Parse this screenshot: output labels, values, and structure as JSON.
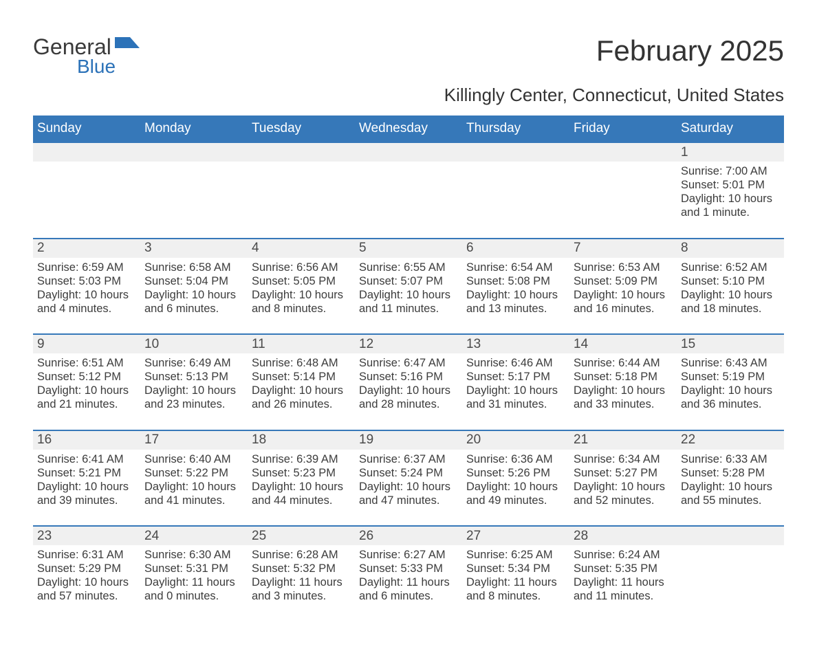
{
  "brand": {
    "word1": "General",
    "word2": "Blue",
    "text_color": "#3a3a3a",
    "accent_color": "#2c72b8"
  },
  "header": {
    "title": "February 2025",
    "location": "Killingly Center, Connecticut, United States"
  },
  "colors": {
    "header_row_bg": "#3678b9",
    "header_row_text": "#ffffff",
    "date_band_bg": "#f0f0f0",
    "date_band_border": "#3678b9",
    "body_text": "#3c3c3c",
    "page_bg": "#ffffff"
  },
  "font": {
    "title_size_pt": 32,
    "location_size_pt": 20,
    "weekday_size_pt": 14,
    "date_size_pt": 14,
    "body_size_pt": 12,
    "family": "Segoe UI"
  },
  "weekdays": [
    "Sunday",
    "Monday",
    "Tuesday",
    "Wednesday",
    "Thursday",
    "Friday",
    "Saturday"
  ],
  "weeks": [
    {
      "dates": [
        "",
        "",
        "",
        "",
        "",
        "",
        "1"
      ],
      "cells": [
        null,
        null,
        null,
        null,
        null,
        null,
        {
          "sunrise": "Sunrise: 7:00 AM",
          "sunset": "Sunset: 5:01 PM",
          "daylight": "Daylight: 10 hours and 1 minute."
        }
      ]
    },
    {
      "dates": [
        "2",
        "3",
        "4",
        "5",
        "6",
        "7",
        "8"
      ],
      "cells": [
        {
          "sunrise": "Sunrise: 6:59 AM",
          "sunset": "Sunset: 5:03 PM",
          "daylight": "Daylight: 10 hours and 4 minutes."
        },
        {
          "sunrise": "Sunrise: 6:58 AM",
          "sunset": "Sunset: 5:04 PM",
          "daylight": "Daylight: 10 hours and 6 minutes."
        },
        {
          "sunrise": "Sunrise: 6:56 AM",
          "sunset": "Sunset: 5:05 PM",
          "daylight": "Daylight: 10 hours and 8 minutes."
        },
        {
          "sunrise": "Sunrise: 6:55 AM",
          "sunset": "Sunset: 5:07 PM",
          "daylight": "Daylight: 10 hours and 11 minutes."
        },
        {
          "sunrise": "Sunrise: 6:54 AM",
          "sunset": "Sunset: 5:08 PM",
          "daylight": "Daylight: 10 hours and 13 minutes."
        },
        {
          "sunrise": "Sunrise: 6:53 AM",
          "sunset": "Sunset: 5:09 PM",
          "daylight": "Daylight: 10 hours and 16 minutes."
        },
        {
          "sunrise": "Sunrise: 6:52 AM",
          "sunset": "Sunset: 5:10 PM",
          "daylight": "Daylight: 10 hours and 18 minutes."
        }
      ]
    },
    {
      "dates": [
        "9",
        "10",
        "11",
        "12",
        "13",
        "14",
        "15"
      ],
      "cells": [
        {
          "sunrise": "Sunrise: 6:51 AM",
          "sunset": "Sunset: 5:12 PM",
          "daylight": "Daylight: 10 hours and 21 minutes."
        },
        {
          "sunrise": "Sunrise: 6:49 AM",
          "sunset": "Sunset: 5:13 PM",
          "daylight": "Daylight: 10 hours and 23 minutes."
        },
        {
          "sunrise": "Sunrise: 6:48 AM",
          "sunset": "Sunset: 5:14 PM",
          "daylight": "Daylight: 10 hours and 26 minutes."
        },
        {
          "sunrise": "Sunrise: 6:47 AM",
          "sunset": "Sunset: 5:16 PM",
          "daylight": "Daylight: 10 hours and 28 minutes."
        },
        {
          "sunrise": "Sunrise: 6:46 AM",
          "sunset": "Sunset: 5:17 PM",
          "daylight": "Daylight: 10 hours and 31 minutes."
        },
        {
          "sunrise": "Sunrise: 6:44 AM",
          "sunset": "Sunset: 5:18 PM",
          "daylight": "Daylight: 10 hours and 33 minutes."
        },
        {
          "sunrise": "Sunrise: 6:43 AM",
          "sunset": "Sunset: 5:19 PM",
          "daylight": "Daylight: 10 hours and 36 minutes."
        }
      ]
    },
    {
      "dates": [
        "16",
        "17",
        "18",
        "19",
        "20",
        "21",
        "22"
      ],
      "cells": [
        {
          "sunrise": "Sunrise: 6:41 AM",
          "sunset": "Sunset: 5:21 PM",
          "daylight": "Daylight: 10 hours and 39 minutes."
        },
        {
          "sunrise": "Sunrise: 6:40 AM",
          "sunset": "Sunset: 5:22 PM",
          "daylight": "Daylight: 10 hours and 41 minutes."
        },
        {
          "sunrise": "Sunrise: 6:39 AM",
          "sunset": "Sunset: 5:23 PM",
          "daylight": "Daylight: 10 hours and 44 minutes."
        },
        {
          "sunrise": "Sunrise: 6:37 AM",
          "sunset": "Sunset: 5:24 PM",
          "daylight": "Daylight: 10 hours and 47 minutes."
        },
        {
          "sunrise": "Sunrise: 6:36 AM",
          "sunset": "Sunset: 5:26 PM",
          "daylight": "Daylight: 10 hours and 49 minutes."
        },
        {
          "sunrise": "Sunrise: 6:34 AM",
          "sunset": "Sunset: 5:27 PM",
          "daylight": "Daylight: 10 hours and 52 minutes."
        },
        {
          "sunrise": "Sunrise: 6:33 AM",
          "sunset": "Sunset: 5:28 PM",
          "daylight": "Daylight: 10 hours and 55 minutes."
        }
      ]
    },
    {
      "dates": [
        "23",
        "24",
        "25",
        "26",
        "27",
        "28",
        ""
      ],
      "cells": [
        {
          "sunrise": "Sunrise: 6:31 AM",
          "sunset": "Sunset: 5:29 PM",
          "daylight": "Daylight: 10 hours and 57 minutes."
        },
        {
          "sunrise": "Sunrise: 6:30 AM",
          "sunset": "Sunset: 5:31 PM",
          "daylight": "Daylight: 11 hours and 0 minutes."
        },
        {
          "sunrise": "Sunrise: 6:28 AM",
          "sunset": "Sunset: 5:32 PM",
          "daylight": "Daylight: 11 hours and 3 minutes."
        },
        {
          "sunrise": "Sunrise: 6:27 AM",
          "sunset": "Sunset: 5:33 PM",
          "daylight": "Daylight: 11 hours and 6 minutes."
        },
        {
          "sunrise": "Sunrise: 6:25 AM",
          "sunset": "Sunset: 5:34 PM",
          "daylight": "Daylight: 11 hours and 8 minutes."
        },
        {
          "sunrise": "Sunrise: 6:24 AM",
          "sunset": "Sunset: 5:35 PM",
          "daylight": "Daylight: 11 hours and 11 minutes."
        },
        null
      ]
    }
  ]
}
